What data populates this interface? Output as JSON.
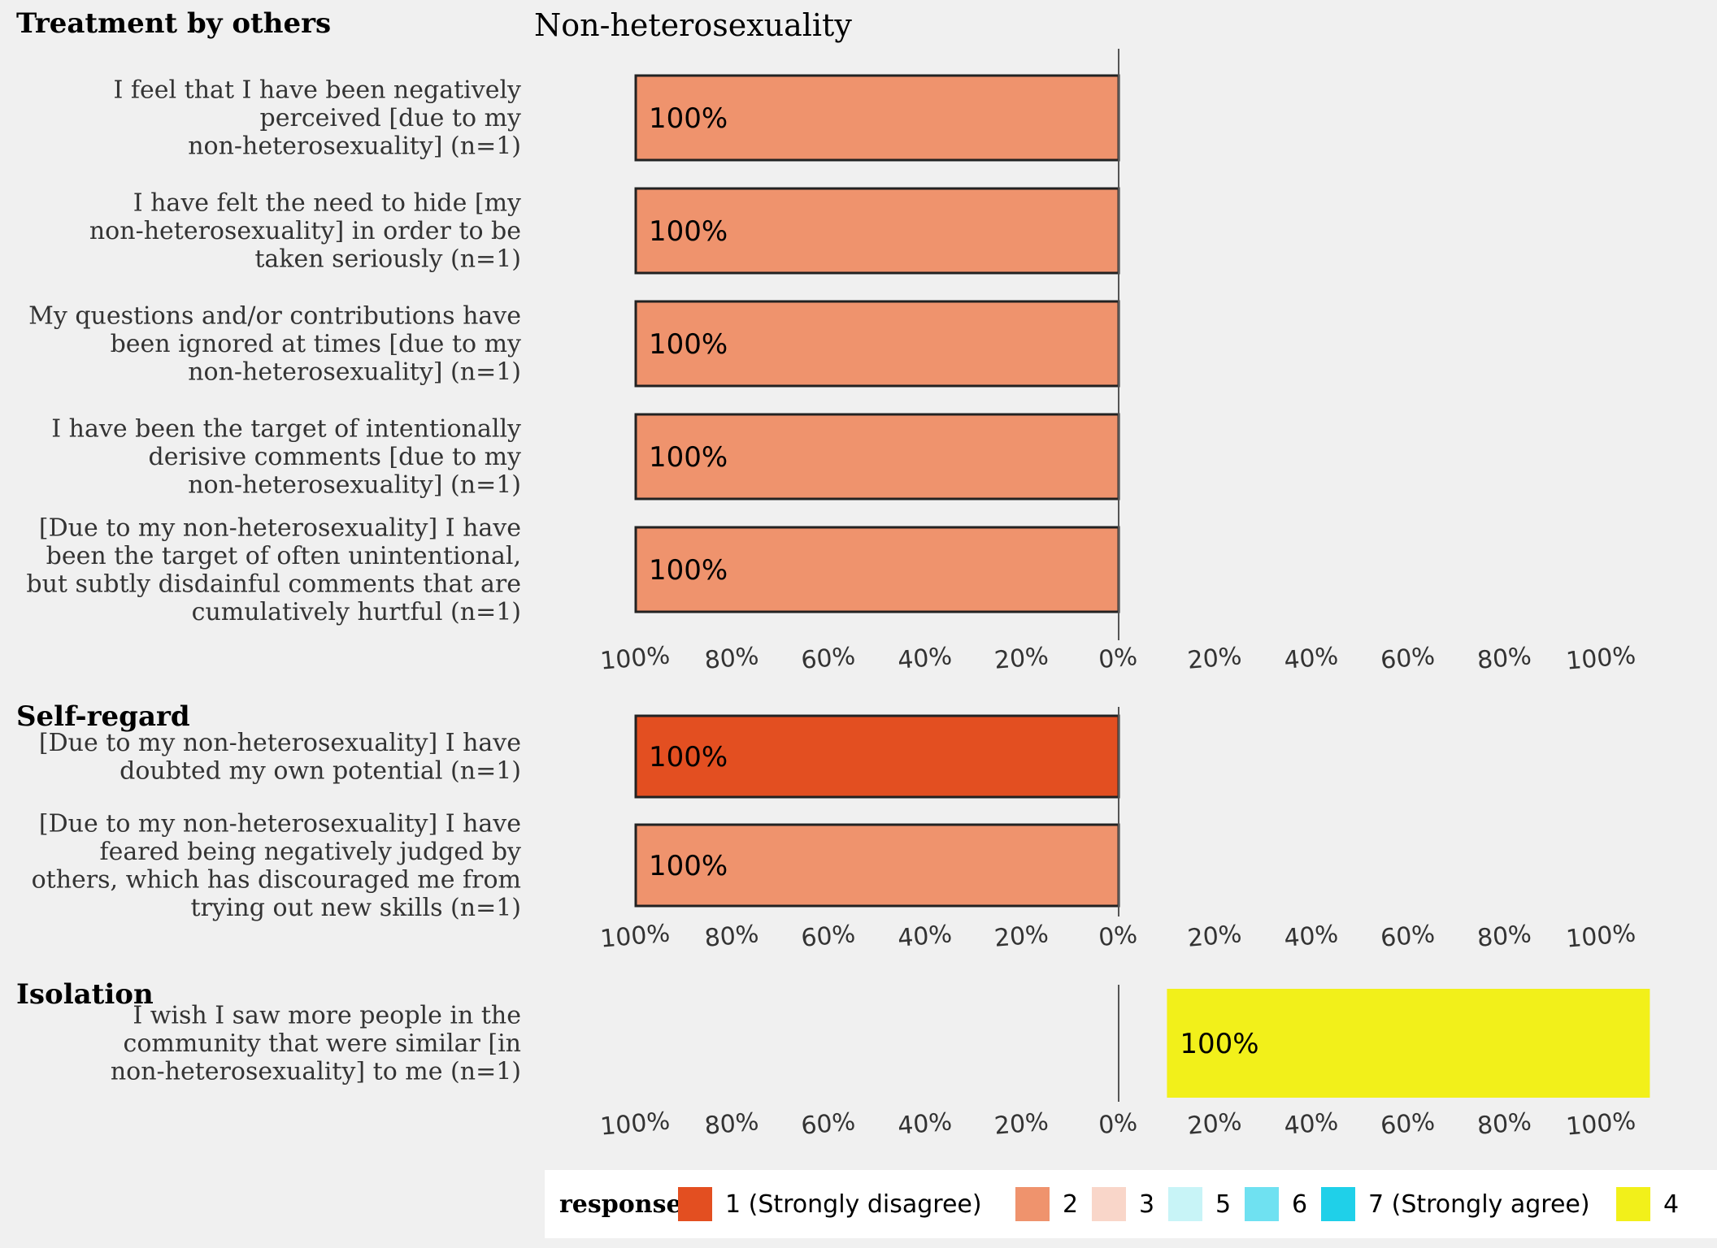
{
  "chart_data": {
    "type": "bar",
    "title": "Non-heterosexuality",
    "orientation": "horizontal-diverging",
    "axis_ticks": [
      "100%",
      "80%",
      "60%",
      "40%",
      "20%",
      "0%",
      "20%",
      "40%",
      "60%",
      "80%",
      "100%"
    ],
    "legend": {
      "title": "response",
      "position": "bottom",
      "entries": [
        {
          "label": "1 (Strongly disagree)",
          "color": "#e34f21"
        },
        {
          "label": "2",
          "color": "#ef936d"
        },
        {
          "label": "3",
          "color": "#f9d6c9"
        },
        {
          "label": "5",
          "color": "#c8f4f7"
        },
        {
          "label": "6",
          "color": "#6fe1f1"
        },
        {
          "label": "7 (Strongly agree)",
          "color": "#1fd0e9"
        },
        {
          "label": "4",
          "color": "#f2f01a"
        }
      ]
    },
    "panels": [
      {
        "title": "Treatment by others",
        "items": [
          {
            "label_lines": [
              "I feel that I have been negatively",
              "perceived [due to my",
              "non-heterosexuality] (n=1)"
            ],
            "response": "2",
            "side": "left",
            "start": 0,
            "value": 100,
            "value_label": "100%"
          },
          {
            "label_lines": [
              "I have felt the need to hide [my",
              "non-heterosexuality] in order to be",
              "taken seriously (n=1)"
            ],
            "response": "2",
            "side": "left",
            "start": 0,
            "value": 100,
            "value_label": "100%"
          },
          {
            "label_lines": [
              "My questions and/or contributions have",
              "been ignored at times [due to my",
              "non-heterosexuality] (n=1)"
            ],
            "response": "2",
            "side": "left",
            "start": 0,
            "value": 100,
            "value_label": "100%"
          },
          {
            "label_lines": [
              "I have been the target of intentionally",
              "derisive comments [due to my",
              "non-heterosexuality] (n=1)"
            ],
            "response": "2",
            "side": "left",
            "start": 0,
            "value": 100,
            "value_label": "100%"
          },
          {
            "label_lines": [
              "[Due to my non-heterosexuality] I have",
              "been the target of often unintentional,",
              "but subtly disdainful comments that are",
              "cumulatively hurtful (n=1)"
            ],
            "response": "2",
            "side": "left",
            "start": 0,
            "value": 100,
            "value_label": "100%"
          }
        ]
      },
      {
        "title": "Self-regard",
        "items": [
          {
            "label_lines": [
              "[Due to my non-heterosexuality] I have",
              "doubted my own potential (n=1)"
            ],
            "response": "1 (Strongly disagree)",
            "side": "left",
            "start": 0,
            "value": 100,
            "value_label": "100%"
          },
          {
            "label_lines": [
              "[Due to my non-heterosexuality] I have",
              "feared being negatively judged by",
              "others, which has discouraged me from",
              "trying out new skills (n=1)"
            ],
            "response": "2",
            "side": "left",
            "start": 0,
            "value": 100,
            "value_label": "100%"
          }
        ]
      },
      {
        "title": "Isolation",
        "items": [
          {
            "label_lines": [
              "I wish I saw more people in the",
              "community that were similar [in",
              "non-heterosexuality] to me (n=1)"
            ],
            "response": "4",
            "side": "right",
            "start": 10,
            "value": 100,
            "value_label": "100%"
          }
        ]
      }
    ]
  }
}
